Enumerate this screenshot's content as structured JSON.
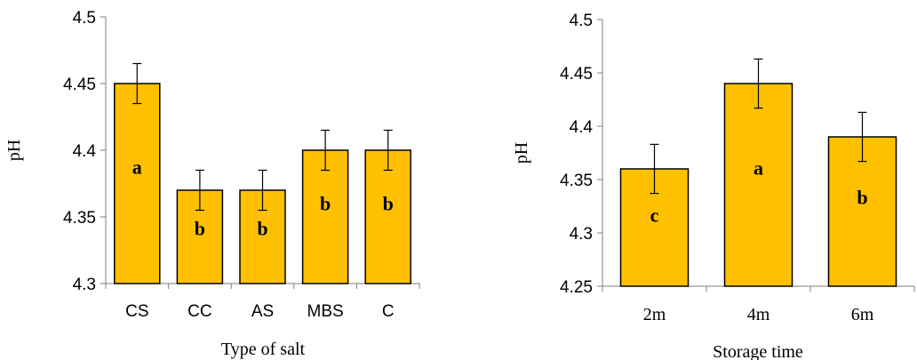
{
  "chart_data": [
    {
      "type": "bar",
      "categories": [
        "CS",
        "CC",
        "AS",
        "MBS",
        "C"
      ],
      "values": [
        4.45,
        4.37,
        4.37,
        4.4,
        4.4
      ],
      "error": [
        0.015,
        0.015,
        0.015,
        0.015,
        0.015
      ],
      "letters": [
        "a",
        "b",
        "b",
        "b",
        "b"
      ],
      "xlabel": "Type of salt",
      "ylabel": "pH",
      "ylim": [
        4.3,
        4.5
      ],
      "yticks": [
        "4.3",
        "4.35",
        "4.4",
        "4.45",
        "4.5"
      ],
      "grid": false,
      "bar_color": "#FFC000"
    },
    {
      "type": "bar",
      "categories": [
        "2m",
        "4m",
        "6m"
      ],
      "values": [
        4.36,
        4.44,
        4.39
      ],
      "error": [
        0.023,
        0.023,
        0.023
      ],
      "letters": [
        "c",
        "a",
        "b"
      ],
      "xlabel": "Storage time",
      "ylabel": "pH",
      "ylim": [
        4.25,
        4.5
      ],
      "yticks": [
        "4.25",
        "4.3",
        "4.35",
        "4.4",
        "4.45",
        "4.5"
      ],
      "grid": false,
      "bar_color": "#FFC000"
    }
  ]
}
